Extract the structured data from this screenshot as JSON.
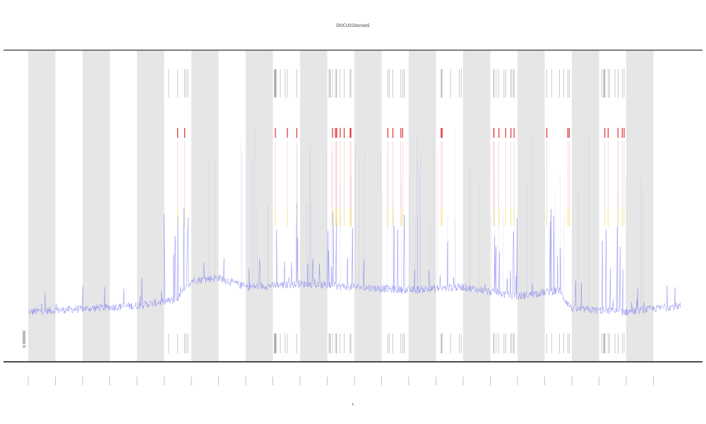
{
  "chart_data": {
    "type": "line",
    "title": "DOCU01bonesS",
    "xlabel": "t",
    "ylabel": "",
    "corner_label": "0.000000",
    "grid": false,
    "legend": "none",
    "colors": {
      "signal": "#7f7ff0",
      "band": "#e6e6e6",
      "event": "#444444",
      "marker_red": "#e03030",
      "marker_yellow": "#f2d04a",
      "axis": "#555555"
    },
    "x_ticks": 24,
    "bands": [
      1,
      3,
      5,
      7,
      9,
      11,
      13,
      15,
      17,
      19,
      21,
      23
    ],
    "busy_bands": [
      6,
      10,
      12,
      14,
      16,
      18,
      20,
      22
    ],
    "series": [
      {
        "name": "",
        "baseline": [
          [
            0,
            0.16
          ],
          [
            2,
            0.17
          ],
          [
            4,
            0.18
          ],
          [
            5.5,
            0.2
          ],
          [
            6,
            0.26
          ],
          [
            7,
            0.27
          ],
          [
            8,
            0.24
          ],
          [
            10,
            0.25
          ],
          [
            12,
            0.24
          ],
          [
            14,
            0.23
          ],
          [
            16,
            0.24
          ],
          [
            18,
            0.21
          ],
          [
            19.5,
            0.23
          ],
          [
            20,
            0.17
          ],
          [
            22,
            0.16
          ],
          [
            24,
            0.18
          ]
        ]
      }
    ]
  }
}
